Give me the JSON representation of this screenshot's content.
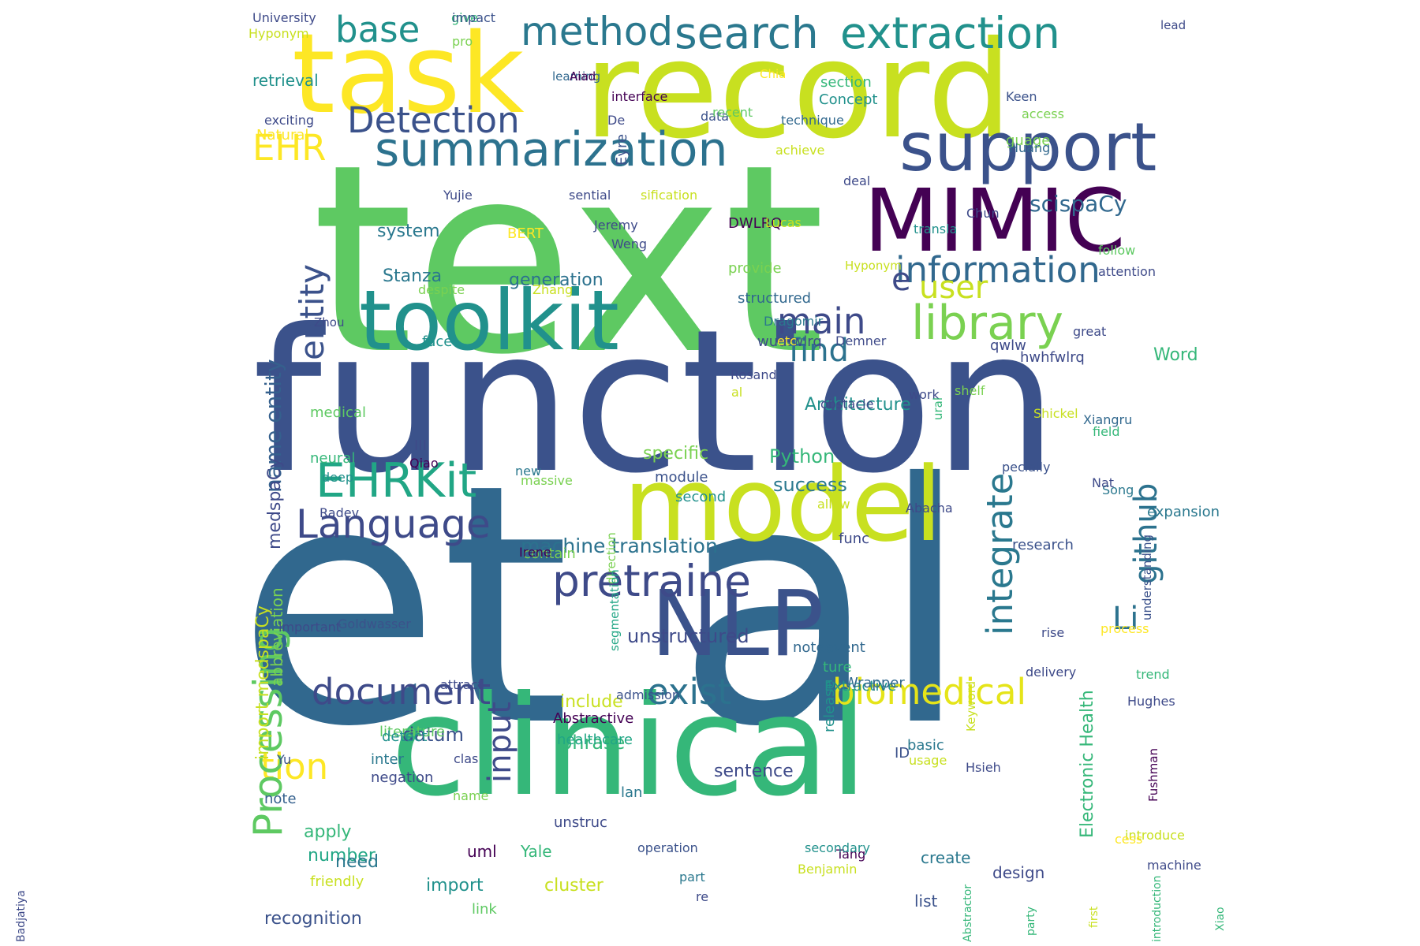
{
  "words": [
    {
      "text": "text",
      "color": "#5ec962",
      "vertical": false
    },
    {
      "text": "et al",
      "color": "#31688e",
      "vertical": false
    },
    {
      "text": "function",
      "color": "#3b528b",
      "vertical": false
    },
    {
      "text": "record",
      "color": "#c8e020",
      "vertical": false
    },
    {
      "text": "clinical",
      "color": "#35b779",
      "vertical": false
    },
    {
      "text": "task",
      "color": "#fde725",
      "vertical": false
    },
    {
      "text": "model",
      "color": "#c8e020",
      "vertical": false
    },
    {
      "text": "toolkit",
      "color": "#21918c",
      "vertical": false
    },
    {
      "text": "MIMIC",
      "color": "#440154",
      "vertical": false
    },
    {
      "text": "NLP",
      "color": "#3b528b",
      "vertical": false
    },
    {
      "text": "support",
      "color": "#3b528b",
      "vertical": false
    },
    {
      "text": "summarization",
      "color": "#2c728e",
      "vertical": false
    },
    {
      "text": "extraction",
      "color": "#21918c",
      "vertical": false
    },
    {
      "text": "search",
      "color": "#2a788e",
      "vertical": false
    },
    {
      "text": "pretraine",
      "color": "#3e4a89",
      "vertical": false
    },
    {
      "text": "library",
      "color": "#7ad151",
      "vertical": false
    },
    {
      "text": "EHRKit",
      "color": "#21a685",
      "vertical": false
    },
    {
      "text": "Language",
      "color": "#3e4a89",
      "vertical": false
    },
    {
      "text": "information",
      "color": "#31688e",
      "vertical": false
    },
    {
      "text": "biomedical",
      "color": "#e5e419",
      "vertical": false
    },
    {
      "text": "document",
      "color": "#3e4a89",
      "vertical": false
    },
    {
      "text": "exist",
      "color": "#2c728e",
      "vertical": false
    },
    {
      "text": "method",
      "color": "#2a788e",
      "vertical": false
    },
    {
      "text": "base",
      "color": "#21918c",
      "vertical": false
    },
    {
      "text": "Detection",
      "color": "#3b528b",
      "vertical": false
    },
    {
      "text": "EHR",
      "color": "#fde725",
      "vertical": false
    },
    {
      "text": "main",
      "color": "#3e4a89",
      "vertical": false
    },
    {
      "text": "find",
      "color": "#2c728e",
      "vertical": false
    },
    {
      "text": "user",
      "color": "#c8e020",
      "vertical": false
    },
    {
      "text": "tion",
      "color": "#fde725",
      "vertical": false
    },
    {
      "text": "Processing",
      "color": "#5ec962",
      "vertical": true
    },
    {
      "text": "entity",
      "color": "#3b528b",
      "vertical": true
    },
    {
      "text": "input",
      "color": "#3e4a89",
      "vertical": true
    },
    {
      "text": "integrate",
      "color": "#2a788e",
      "vertical": true
    },
    {
      "text": "github",
      "color": "#2c728e",
      "vertical": true
    },
    {
      "text": "Li",
      "color": "#2c728e",
      "vertical": false
    },
    {
      "text": "e",
      "color": "#3e4a89",
      "vertical": false
    },
    {
      "text": "machine translation",
      "color": "#2c728e",
      "vertical": false
    },
    {
      "text": "scispaCy",
      "color": "#31688e",
      "vertical": false
    },
    {
      "text": "name entity",
      "color": "#35608d",
      "vertical": true
    },
    {
      "text": "unstructured",
      "color": "#3e4a89",
      "vertical": false
    },
    {
      "text": "system",
      "color": "#2a788e",
      "vertical": false
    },
    {
      "text": "Stanza",
      "color": "#2a788e",
      "vertical": false
    },
    {
      "text": "generation",
      "color": "#2c728e",
      "vertical": false
    },
    {
      "text": "Python",
      "color": "#35b779",
      "vertical": false
    },
    {
      "text": "success",
      "color": "#2a788e",
      "vertical": false
    },
    {
      "text": "specific",
      "color": "#7ad151",
      "vertical": false
    },
    {
      "text": "Architecture",
      "color": "#21918c",
      "vertical": false
    },
    {
      "text": "datum",
      "color": "#3b528b",
      "vertical": false
    },
    {
      "text": "phrase",
      "color": "#35b779",
      "vertical": false
    },
    {
      "text": "include",
      "color": "#c8e020",
      "vertical": false
    },
    {
      "text": "sentence",
      "color": "#3e4a89",
      "vertical": false
    },
    {
      "text": "apply",
      "color": "#35b779",
      "vertical": false
    },
    {
      "text": "number",
      "color": "#21a685",
      "vertical": false
    },
    {
      "text": "need",
      "color": "#2a788e",
      "vertical": false
    },
    {
      "text": "import",
      "color": "#21918c",
      "vertical": false
    },
    {
      "text": "recognition",
      "color": "#3b528b",
      "vertical": false
    },
    {
      "text": "uml",
      "color": "#440154",
      "vertical": false
    },
    {
      "text": "Yale",
      "color": "#35b779",
      "vertical": false
    },
    {
      "text": "cluster",
      "color": "#c8e020",
      "vertical": false
    },
    {
      "text": "create",
      "color": "#2a788e",
      "vertical": false
    },
    {
      "text": "design",
      "color": "#3e4a89",
      "vertical": false
    },
    {
      "text": "list",
      "color": "#3b528b",
      "vertical": false
    },
    {
      "text": "Word",
      "color": "#35b779",
      "vertical": false
    },
    {
      "text": "Electronic Health",
      "color": "#35b779",
      "vertical": true
    },
    {
      "text": "import medspaCy",
      "color": "#c8e020",
      "vertical": true
    },
    {
      "text": "abbreviation",
      "color": "#7ad151",
      "vertical": true
    },
    {
      "text": "medspaCy",
      "color": "#3e4a89",
      "vertical": true
    },
    {
      "text": "Eyre",
      "color": "#3b528b",
      "vertical": true
    },
    {
      "text": "Concept",
      "color": "#21918c",
      "vertical": false
    },
    {
      "text": "section",
      "color": "#35b779",
      "vertical": false
    },
    {
      "text": "guage",
      "color": "#7ad151",
      "vertical": false
    },
    {
      "text": "Natural",
      "color": "#fde725",
      "vertical": false
    },
    {
      "text": "retrieval",
      "color": "#21918c",
      "vertical": false
    },
    {
      "text": "BERT",
      "color": "#fde725",
      "vertical": false
    },
    {
      "text": "DWLRQ",
      "color": "#440154",
      "vertical": false
    },
    {
      "text": "provide",
      "color": "#7ad151",
      "vertical": false
    },
    {
      "text": "structured",
      "color": "#31688e",
      "vertical": false
    },
    {
      "text": "wudfwlrq",
      "color": "#3e4a89",
      "vertical": false
    },
    {
      "text": "face",
      "color": "#21918c",
      "vertical": false
    },
    {
      "text": "medical",
      "color": "#5ec962",
      "vertical": false
    },
    {
      "text": "neural",
      "color": "#35b779",
      "vertical": false
    },
    {
      "text": "III",
      "color": "#3e4a89",
      "vertical": false
    },
    {
      "text": "module",
      "color": "#3b528b",
      "vertical": false
    },
    {
      "text": "second",
      "color": "#21918c",
      "vertical": false
    },
    {
      "text": "func",
      "color": "#3e4a89",
      "vertical": false
    },
    {
      "text": "research",
      "color": "#3b528b",
      "vertical": false
    },
    {
      "text": "expansion",
      "color": "#2a788e",
      "vertical": false
    },
    {
      "text": "hwhfwlrq",
      "color": "#3e4a89",
      "vertical": false
    },
    {
      "text": "qwlw",
      "color": "#3e4a89",
      "vertical": false
    },
    {
      "text": "release",
      "color": "#21918c",
      "vertical": true
    },
    {
      "text": "Abstractive",
      "color": "#440154",
      "vertical": false
    },
    {
      "text": "literature",
      "color": "#5ec962",
      "vertical": false
    },
    {
      "text": "Extractive",
      "color": "#21918c",
      "vertical": false
    },
    {
      "text": "basic",
      "color": "#2a788e",
      "vertical": false
    },
    {
      "text": "healthcare",
      "color": "#21a685",
      "vertical": false
    },
    {
      "text": "detect",
      "color": "#21918c",
      "vertical": false
    },
    {
      "text": "inter",
      "color": "#2a788e",
      "vertical": false
    },
    {
      "text": "ID",
      "color": "#3b528b",
      "vertical": false
    },
    {
      "text": "noteevent",
      "color": "#31688e",
      "vertical": false
    },
    {
      "text": "negation",
      "color": "#3e4a89",
      "vertical": false
    },
    {
      "text": "note",
      "color": "#35608d",
      "vertical": false
    },
    {
      "text": "friendly",
      "color": "#c8e020",
      "vertical": false
    },
    {
      "text": "link",
      "color": "#5ec962",
      "vertical": false
    },
    {
      "text": "lan",
      "color": "#2a788e",
      "vertical": false
    },
    {
      "text": "ture",
      "color": "#35b779",
      "vertical": false
    },
    {
      "text": "Wrapper",
      "color": "#31688e",
      "vertical": false
    },
    {
      "text": "unstruc",
      "color": "#3e4a89",
      "vertical": false
    },
    {
      "text": "contain",
      "color": "#7ad151",
      "vertical": false
    },
    {
      "text": "University",
      "color": "#3e4a89",
      "vertical": false
    },
    {
      "text": "Hyponym",
      "color": "#c8e020",
      "vertical": false
    },
    {
      "text": "give",
      "color": "#35b779",
      "vertical": false
    },
    {
      "text": "pro",
      "color": "#7ad151",
      "vertical": false
    },
    {
      "text": "exciting",
      "color": "#3e4a89",
      "vertical": false
    },
    {
      "text": "interface",
      "color": "#440154",
      "vertical": false
    },
    {
      "text": "De",
      "color": "#3e4a89",
      "vertical": false
    },
    {
      "text": "data",
      "color": "#3b528b",
      "vertical": false
    },
    {
      "text": "recent",
      "color": "#5ec962",
      "vertical": false
    },
    {
      "text": "technique",
      "color": "#31688e",
      "vertical": false
    },
    {
      "text": "Keen",
      "color": "#3b528b",
      "vertical": false
    },
    {
      "text": "access",
      "color": "#7ad151",
      "vertical": false
    },
    {
      "text": "achieve",
      "color": "#c8e020",
      "vertical": false
    },
    {
      "text": "deal",
      "color": "#3e4a89",
      "vertical": false
    },
    {
      "text": "Huang",
      "color": "#31688e",
      "vertical": false
    },
    {
      "text": "Yujie",
      "color": "#3e4a89",
      "vertical": false
    },
    {
      "text": "sential",
      "color": "#3e4a89",
      "vertical": false
    },
    {
      "text": "sification",
      "color": "#c8e020",
      "vertical": false
    },
    {
      "text": "Lucas",
      "color": "#c8e020",
      "vertical": false
    },
    {
      "text": "transla",
      "color": "#21918c",
      "vertical": false
    },
    {
      "text": "Chun",
      "color": "#3e4a89",
      "vertical": false
    },
    {
      "text": "Jeremy",
      "color": "#3e4a89",
      "vertical": false
    },
    {
      "text": "Weng",
      "color": "#3e4a89",
      "vertical": false
    },
    {
      "text": "follow",
      "color": "#5ec962",
      "vertical": false
    },
    {
      "text": "attention",
      "color": "#3e4a89",
      "vertical": false
    },
    {
      "text": "Zhang",
      "color": "#c8e020",
      "vertical": false
    },
    {
      "text": "despite",
      "color": "#7ad151",
      "vertical": false
    },
    {
      "text": "Dragomir",
      "color": "#2a788e",
      "vertical": false
    },
    {
      "text": "etc",
      "color": "#fde725",
      "vertical": false
    },
    {
      "text": "Demner",
      "color": "#3e4a89",
      "vertical": false
    },
    {
      "text": "great",
      "color": "#3e4a89",
      "vertical": false
    },
    {
      "text": "Rosand",
      "color": "#3e4a89",
      "vertical": false
    },
    {
      "text": "al",
      "color": "#c8e020",
      "vertical": false
    },
    {
      "text": "shelf",
      "color": "#7ad151",
      "vertical": false
    },
    {
      "text": "obstacle",
      "color": "#3e4a89",
      "vertical": false
    },
    {
      "text": "work",
      "color": "#3e4a89",
      "vertical": false
    },
    {
      "text": "Xiangru",
      "color": "#31688e",
      "vertical": false
    },
    {
      "text": "field",
      "color": "#35b779",
      "vertical": false
    },
    {
      "text": "pecially",
      "color": "#3b528b",
      "vertical": false
    },
    {
      "text": "deep",
      "color": "#21918c",
      "vertical": false
    },
    {
      "text": "Qiao",
      "color": "#440154",
      "vertical": false
    },
    {
      "text": "new",
      "color": "#2a788e",
      "vertical": false
    },
    {
      "text": "allow",
      "color": "#c8e020",
      "vertical": false
    },
    {
      "text": "Shickel",
      "color": "#c8e020",
      "vertical": false
    },
    {
      "text": "massive",
      "color": "#7ad151",
      "vertical": false
    },
    {
      "text": "Song",
      "color": "#2a788e",
      "vertical": false
    },
    {
      "text": "Radev",
      "color": "#3e4a89",
      "vertical": false
    },
    {
      "text": "Nat",
      "color": "#3e4a89",
      "vertical": false
    },
    {
      "text": "Abacha",
      "color": "#3e4a89",
      "vertical": false
    },
    {
      "text": "Irene",
      "color": "#440154",
      "vertical": false
    },
    {
      "text": "important",
      "color": "#3e4a89",
      "vertical": false
    },
    {
      "text": "Goldwasser",
      "color": "#3b528b",
      "vertical": false
    },
    {
      "text": "trend",
      "color": "#35b779",
      "vertical": false
    },
    {
      "text": "attract",
      "color": "#3e4a89",
      "vertical": false
    },
    {
      "text": "admission",
      "color": "#3b528b",
      "vertical": false
    },
    {
      "text": "rise",
      "color": "#3e4a89",
      "vertical": false
    },
    {
      "text": "process",
      "color": "#fde725",
      "vertical": false
    },
    {
      "text": "delivery",
      "color": "#3e4a89",
      "vertical": false
    },
    {
      "text": "Hughes",
      "color": "#3e4a89",
      "vertical": false
    },
    {
      "text": "Yu",
      "color": "#3b528b",
      "vertical": false
    },
    {
      "text": "clas",
      "color": "#3e4a89",
      "vertical": false
    },
    {
      "text": "name",
      "color": "#7ad151",
      "vertical": false
    },
    {
      "text": "usage",
      "color": "#c8e020",
      "vertical": false
    },
    {
      "text": "Hsieh",
      "color": "#3e4a89",
      "vertical": false
    },
    {
      "text": "introduce",
      "color": "#c8e020",
      "vertical": false
    },
    {
      "text": "operation",
      "color": "#3b528b",
      "vertical": false
    },
    {
      "text": "Tang",
      "color": "#440154",
      "vertical": false
    },
    {
      "text": "secondary",
      "color": "#21918c",
      "vertical": false
    },
    {
      "text": "Benjamin",
      "color": "#c8e020",
      "vertical": false
    },
    {
      "text": "cess",
      "color": "#fde725",
      "vertical": false
    },
    {
      "text": "machine",
      "color": "#3e4a89",
      "vertical": false
    },
    {
      "text": "part",
      "color": "#2a788e",
      "vertical": false
    },
    {
      "text": "re",
      "color": "#3e4a89",
      "vertical": false
    },
    {
      "text": "impact",
      "color": "#3b528b",
      "vertical": false
    },
    {
      "text": "learning",
      "color": "#31688e",
      "vertical": false
    },
    {
      "text": "Aiad",
      "color": "#440154",
      "vertical": false
    },
    {
      "text": "Chia",
      "color": "#fde725",
      "vertical": false
    },
    {
      "text": "lead",
      "color": "#3e4a89",
      "vertical": false
    },
    {
      "text": "Zhou",
      "color": "#3e4a89",
      "vertical": false
    },
    {
      "text": "Hyponym",
      "color": "#c8e020",
      "vertical": false
    },
    {
      "text": "ural",
      "color": "#35b779",
      "vertical": true
    },
    {
      "text": "direction",
      "color": "#7ad151",
      "vertical": true
    },
    {
      "text": "segmentation",
      "color": "#21a685",
      "vertical": true
    },
    {
      "text": "understanding",
      "color": "#3b528b",
      "vertical": true
    },
    {
      "text": "Keyword",
      "color": "#c8e020",
      "vertical": true
    },
    {
      "text": "Fushman",
      "color": "#440154",
      "vertical": true
    },
    {
      "text": "Abstractor",
      "color": "#35b779",
      "vertical": true
    },
    {
      "text": "party",
      "color": "#35b779",
      "vertical": true
    },
    {
      "text": "first",
      "color": "#c8e020",
      "vertical": true
    },
    {
      "text": "introduction",
      "color": "#35b779",
      "vertical": true
    },
    {
      "text": "Xiao",
      "color": "#35b779",
      "vertical": true
    },
    {
      "text": "Badjatiya",
      "color": "#3e4a89",
      "vertical": true
    }
  ]
}
